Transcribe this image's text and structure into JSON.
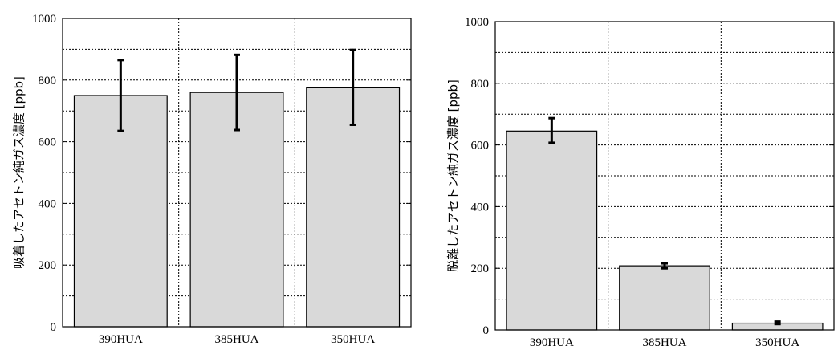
{
  "chart_data": [
    {
      "type": "bar",
      "title": "",
      "xlabel": "",
      "ylabel": "吸着したアセトン純ガス濃度 [ppb]",
      "ylim": [
        0,
        1000
      ],
      "yticks": [
        0,
        200,
        400,
        600,
        800,
        1000
      ],
      "grid": true,
      "categories": [
        "390HUA",
        "385HUA",
        "350HUA"
      ],
      "values": [
        750,
        760,
        775
      ],
      "error_low": [
        635,
        638,
        655
      ],
      "error_high": [
        865,
        882,
        898
      ],
      "colors": {
        "bar_fill": "#d9d9d9",
        "bar_stroke": "#000000",
        "error_bar": "#000000"
      }
    },
    {
      "type": "bar",
      "title": "",
      "xlabel": "",
      "ylabel": "脱離したアセトン純ガス濃度 [ppb]",
      "ylim": [
        0,
        1000
      ],
      "yticks": [
        0,
        200,
        400,
        600,
        800,
        1000
      ],
      "grid": true,
      "categories": [
        "390HUA",
        "385HUA",
        "350HUA"
      ],
      "values": [
        645,
        208,
        22
      ],
      "error_low": [
        607,
        200,
        19
      ],
      "error_high": [
        687,
        216,
        27
      ],
      "colors": {
        "bar_fill": "#d9d9d9",
        "bar_stroke": "#000000",
        "error_bar": "#000000"
      }
    }
  ]
}
